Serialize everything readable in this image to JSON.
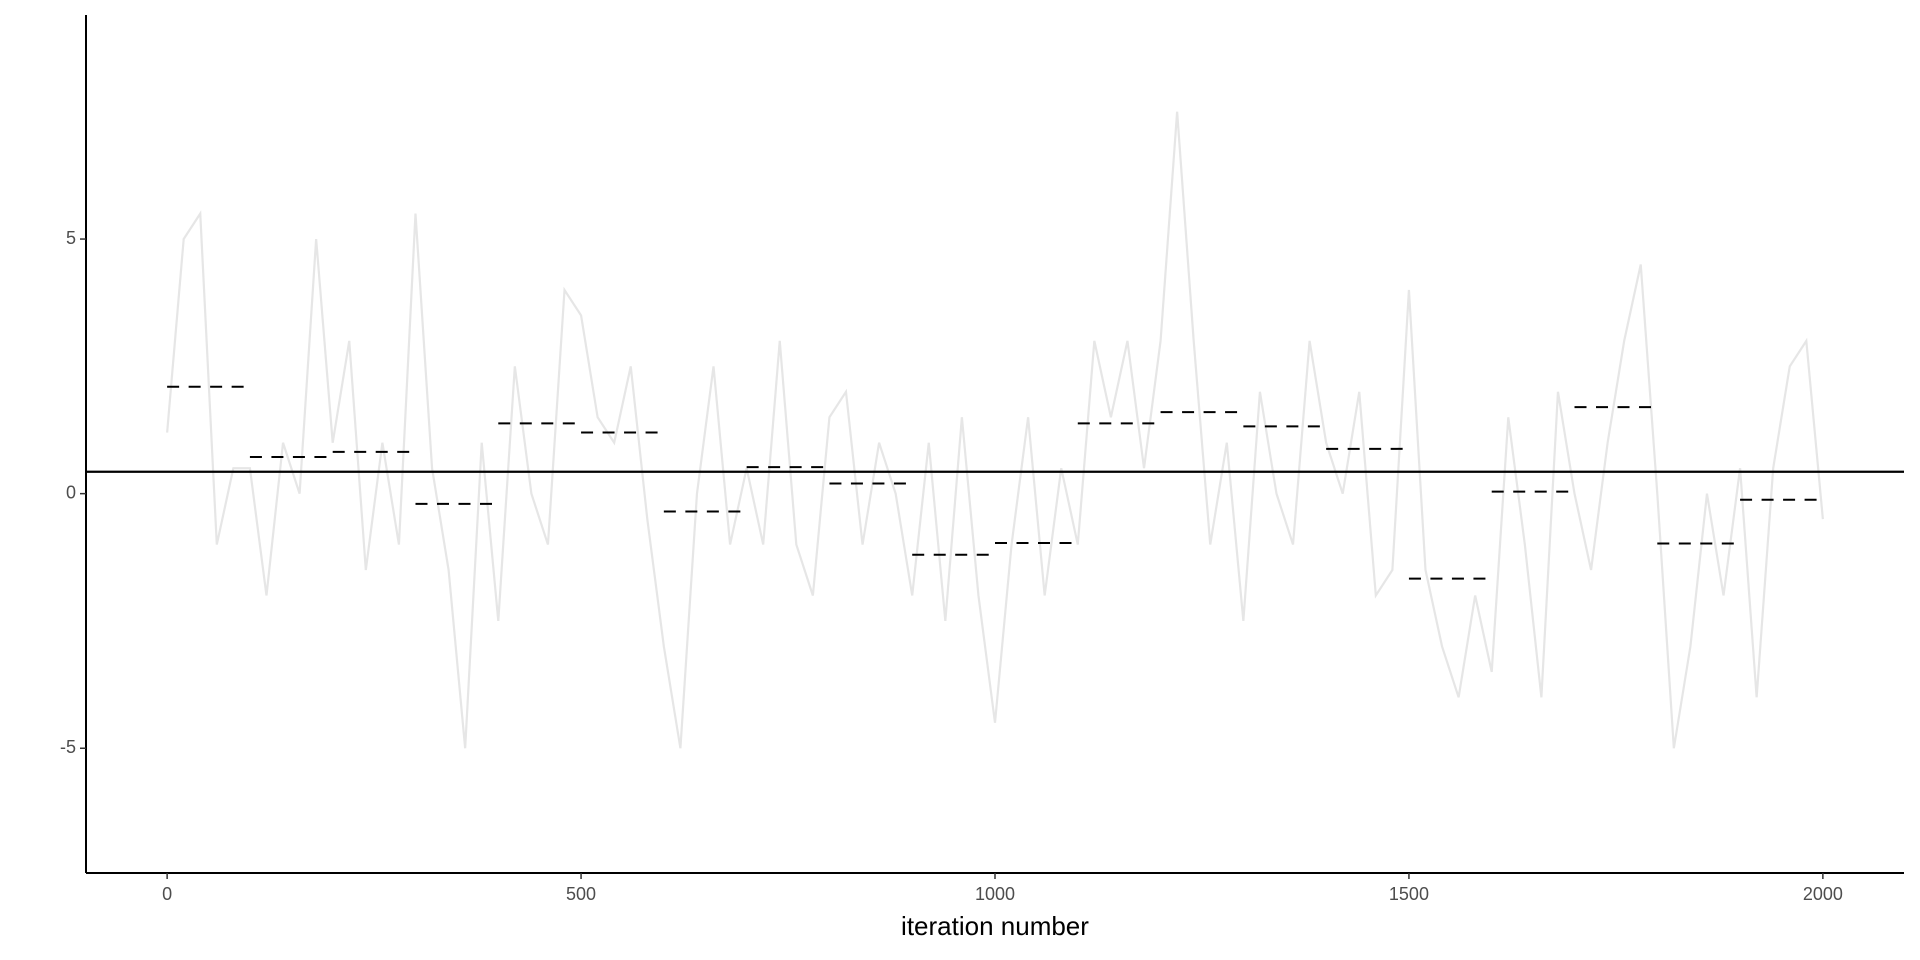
{
  "chart_data": {
    "type": "trace",
    "xlabel": "iteration number",
    "xlim": [
      -98,
      2098
    ],
    "ylim": [
      -7.45,
      9.4
    ],
    "xticks": [
      0,
      500,
      1000,
      1500,
      2000
    ],
    "yticks": [
      -5,
      0,
      5
    ],
    "series": [
      {
        "color": "#e6e6e6",
        "x": [
          0,
          20,
          40,
          60,
          80,
          100,
          120,
          140,
          160,
          180,
          200,
          220,
          240,
          260,
          280,
          300,
          320,
          340,
          360,
          380,
          400,
          420,
          440,
          460,
          480,
          500,
          520,
          540,
          560,
          580,
          600,
          620,
          640,
          660,
          680,
          700,
          720,
          740,
          760,
          780,
          800,
          820,
          840,
          860,
          880,
          900,
          920,
          940,
          960,
          980,
          1000,
          1020,
          1040,
          1060,
          1080,
          1100,
          1120,
          1140,
          1160,
          1180,
          1200,
          1220,
          1240,
          1260,
          1280,
          1300,
          1320,
          1340,
          1360,
          1380,
          1400,
          1420,
          1440,
          1460,
          1480,
          1500,
          1520,
          1540,
          1560,
          1580,
          1600,
          1620,
          1640,
          1660,
          1680,
          1700,
          1720,
          1740,
          1760,
          1780,
          1800,
          1820,
          1840,
          1860,
          1880,
          1900,
          1920,
          1940,
          1960,
          1980,
          2000
        ],
        "values": [
          1.2,
          5.0,
          5.5,
          -1.0,
          0.5,
          0.5,
          -2.0,
          1.0,
          0.0,
          5.0,
          1.0,
          3.0,
          -1.5,
          1.0,
          -1.0,
          5.5,
          0.5,
          -1.5,
          -5.0,
          1.0,
          -2.5,
          2.5,
          0.0,
          -1.0,
          4.0,
          3.5,
          1.5,
          1.0,
          2.5,
          -0.5,
          -3.0,
          -5.0,
          0.0,
          2.5,
          -1.0,
          0.5,
          -1.0,
          3.0,
          -1.0,
          -2.0,
          1.5,
          2.0,
          -1.0,
          1.0,
          0.0,
          -2.0,
          1.0,
          -2.5,
          1.5,
          -2.0,
          -4.5,
          -1.0,
          1.5,
          -2.0,
          0.5,
          -1.0,
          3.0,
          1.5,
          3.0,
          0.5,
          3.0,
          7.5,
          3.0,
          -1.0,
          1.0,
          -2.5,
          2.0,
          0.0,
          -1.0,
          3.0,
          1.0,
          0.0,
          2.0,
          -2.0,
          -1.5,
          4.0,
          -1.5,
          -3.0,
          -4.0,
          -2.0,
          -3.5,
          1.5,
          -1.0,
          -4.0,
          2.0,
          0.0,
          -1.5,
          1.0,
          3.0,
          4.5,
          0.0,
          -5.0,
          -3.0,
          0.0,
          -2.0,
          0.5,
          -4.0,
          0.5,
          2.5,
          3.0,
          -0.5
        ]
      }
    ],
    "batch_means": {
      "color": "#000000",
      "edges": [
        0,
        100,
        200,
        300,
        400,
        500,
        600,
        700,
        800,
        900,
        1000,
        1100,
        1200,
        1300,
        1400,
        1500,
        1600,
        1700,
        1800,
        1900,
        2000
      ],
      "values": [
        2.1,
        0.72,
        0.82,
        -0.2,
        1.38,
        1.2,
        -0.35,
        0.52,
        0.2,
        -1.2,
        -0.97,
        1.38,
        1.6,
        1.32,
        0.88,
        -1.67,
        0.04,
        1.7,
        -0.98,
        -0.12
      ]
    },
    "mean": 0.43
  }
}
